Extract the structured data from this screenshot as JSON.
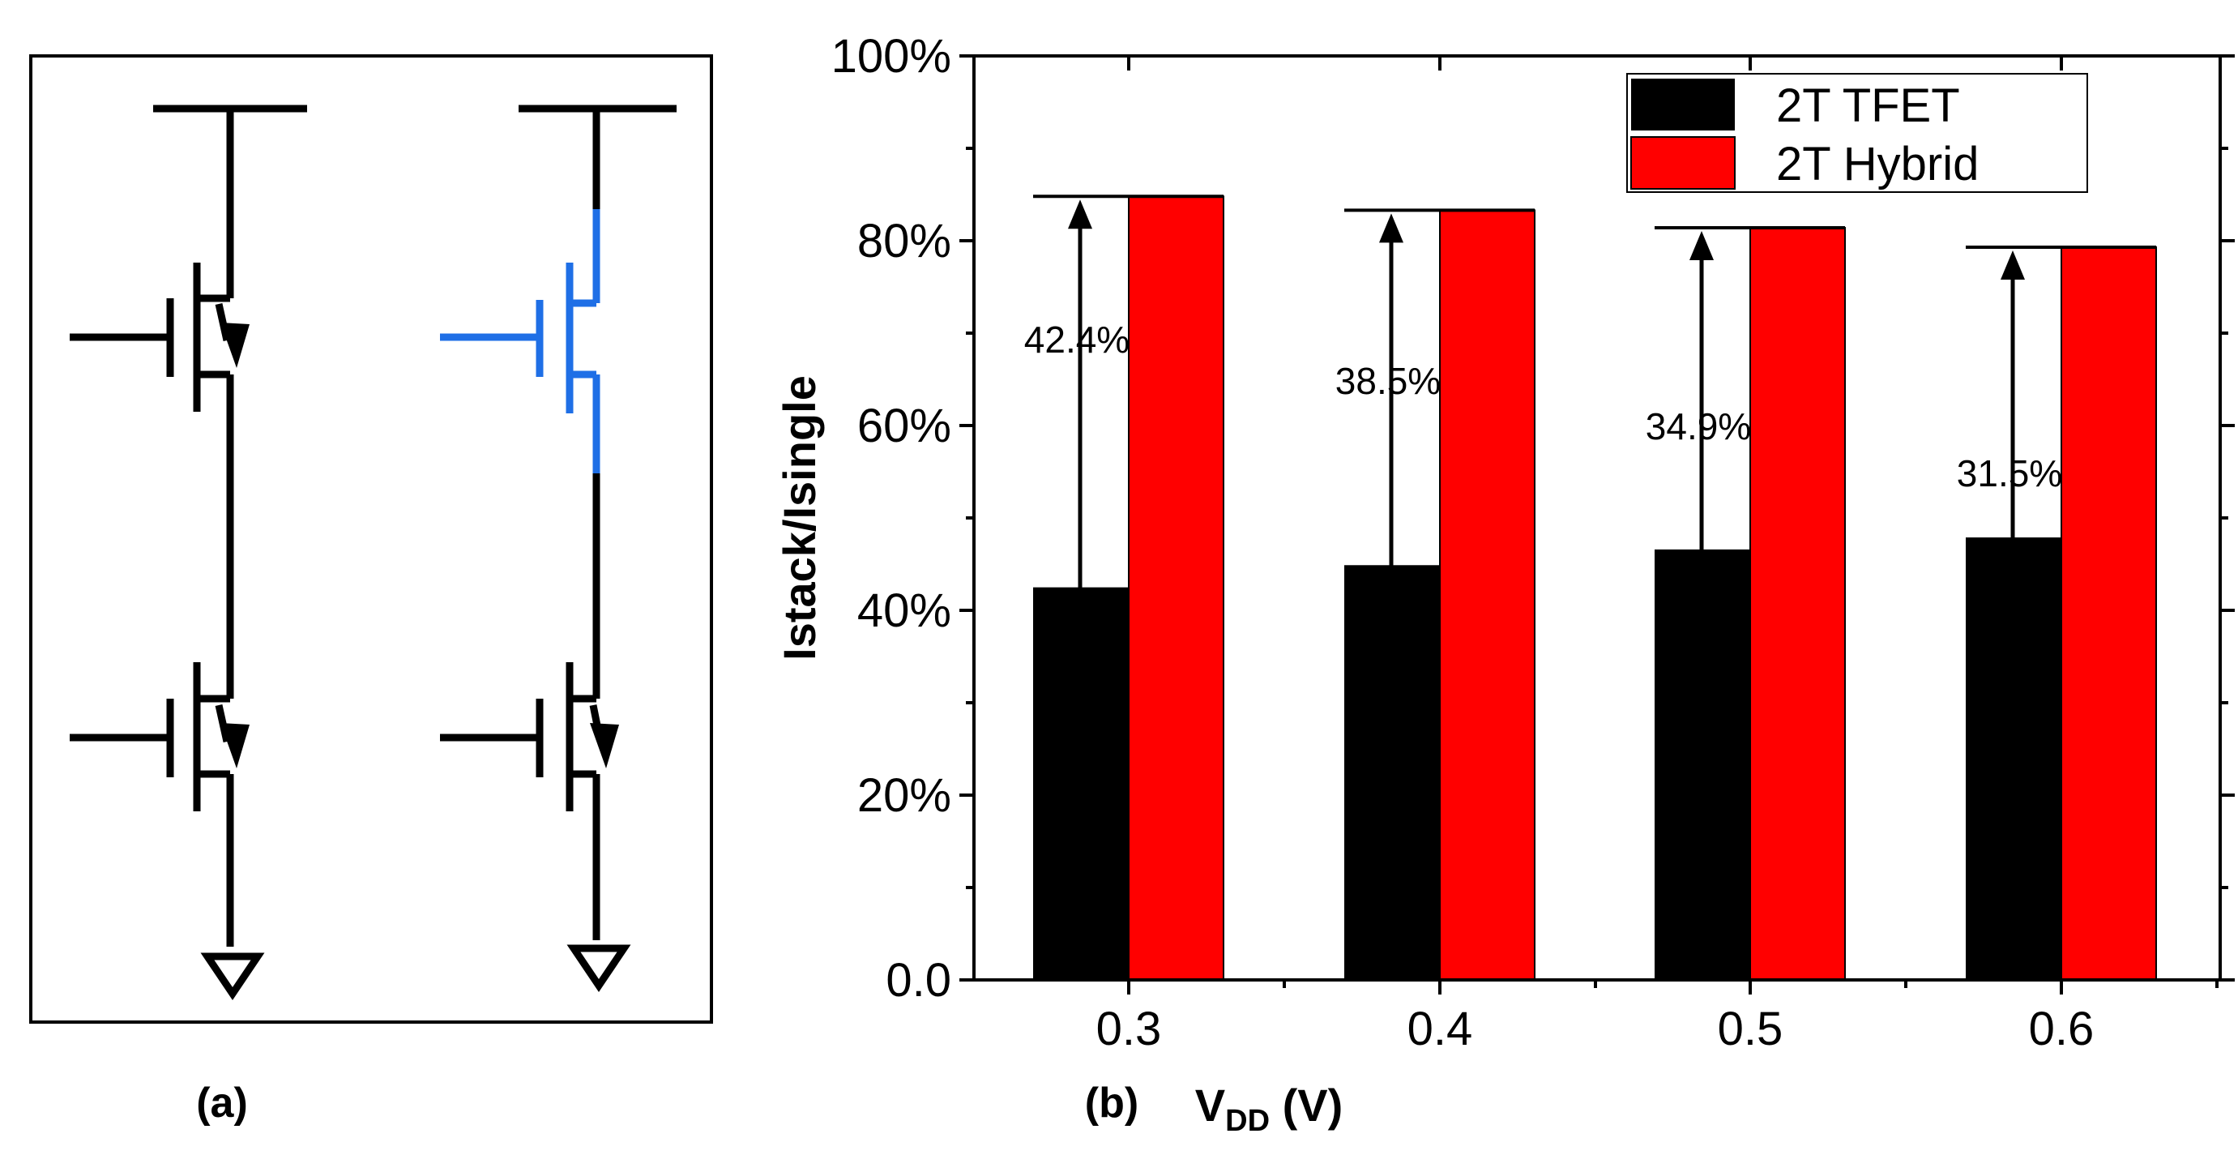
{
  "panel_a": {
    "label": "(a)",
    "circuits": [
      {
        "name": "2T TFET stack",
        "upper_transistor": "TFET",
        "lower_transistor": "TFET"
      },
      {
        "name": "2T Hybrid stack",
        "upper_transistor": "MOSFET (blue)",
        "lower_transistor": "TFET"
      }
    ]
  },
  "panel_b": {
    "label": "(b)"
  },
  "colors": {
    "tfet": "#000000",
    "hybrid": "#ff0000",
    "mosfet_wire": "#1f6fe6",
    "axis": "#000000"
  },
  "chart_data": {
    "type": "bar",
    "title": "",
    "categories": [
      "0.3",
      "0.4",
      "0.5",
      "0.6"
    ],
    "series": [
      {
        "name": "2T TFET",
        "values": [
          42.4,
          44.8,
          46.5,
          47.8
        ]
      },
      {
        "name": "2T Hybrid",
        "values": [
          84.8,
          83.3,
          81.4,
          79.3
        ]
      }
    ],
    "annotations": [
      "42.4%",
      "38.5%",
      "34.9%",
      "31.5%"
    ],
    "ylabel": "Istack/Isingle",
    "xlabel": {
      "main": "V",
      "subscript": "DD",
      "unit": " (V)"
    },
    "ylim": [
      0,
      100
    ],
    "ytick_labels": [
      "0.0",
      "20%",
      "40%",
      "60%",
      "80%",
      "100%"
    ],
    "ytick_values": [
      0,
      20,
      40,
      60,
      80,
      100
    ],
    "legend": {
      "position": "top-right",
      "entries": [
        "2T TFET",
        "2T Hybrid"
      ]
    },
    "grid": false
  }
}
